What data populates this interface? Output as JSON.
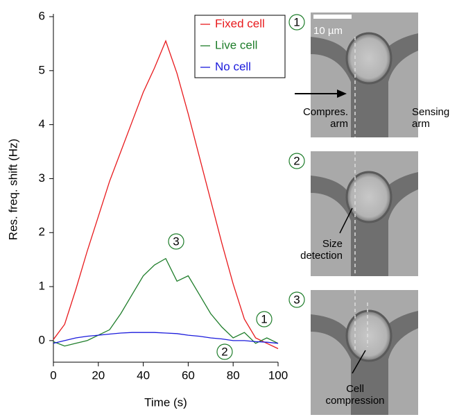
{
  "chart_data": {
    "type": "line",
    "xlabel": "Time (s)",
    "ylabel": "Res. freq. shift (Hz)",
    "x": [
      0,
      5,
      10,
      15,
      20,
      25,
      30,
      35,
      40,
      45,
      50,
      55,
      60,
      65,
      70,
      75,
      80,
      85,
      90,
      95,
      100
    ],
    "series": [
      {
        "name": "Fixed cell",
        "color": "#e8191c",
        "values": [
          0.02,
          0.3,
          0.95,
          1.65,
          2.3,
          2.95,
          3.5,
          4.05,
          4.6,
          5.05,
          5.55,
          4.95,
          4.2,
          3.4,
          2.6,
          1.8,
          1.05,
          0.4,
          0.05,
          -0.05,
          -0.15
        ]
      },
      {
        "name": "Live cell",
        "color": "#1e7d2a",
        "values": [
          -0.02,
          -0.1,
          -0.05,
          0.0,
          0.1,
          0.2,
          0.5,
          0.85,
          1.2,
          1.4,
          1.52,
          1.1,
          1.2,
          0.85,
          0.5,
          0.25,
          0.05,
          0.15,
          -0.05,
          0.05,
          -0.05
        ]
      },
      {
        "name": "No cell",
        "color": "#1a1adc",
        "values": [
          -0.05,
          0.0,
          0.05,
          0.08,
          0.1,
          0.12,
          0.14,
          0.15,
          0.15,
          0.15,
          0.14,
          0.13,
          0.1,
          0.08,
          0.05,
          0.03,
          0.0,
          0.0,
          -0.02,
          -0.03,
          -0.05
        ]
      }
    ],
    "xlim": [
      0,
      100
    ],
    "xticks": [
      0,
      20,
      40,
      60,
      80,
      100
    ],
    "ylim": [
      -0.4,
      6
    ],
    "yticks": [
      0,
      1,
      2,
      3,
      4,
      5,
      6
    ],
    "annotations": [
      "3",
      "1",
      "2"
    ]
  },
  "images": {
    "scale_bar": "10 µm",
    "panels": [
      {
        "number": "1",
        "labels": [
          "Compres.\narm",
          "Sensing\narm"
        ]
      },
      {
        "number": "2",
        "labels": [
          "Size\ndetection"
        ]
      },
      {
        "number": "3",
        "labels": [
          "Cell\ncompression"
        ]
      }
    ]
  }
}
